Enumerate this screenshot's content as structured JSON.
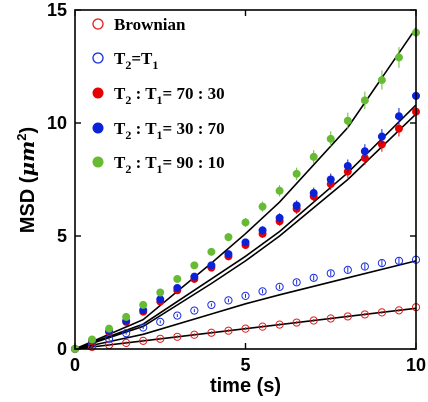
{
  "chart_data": {
    "type": "scatter",
    "xlabel": "time (s)",
    "ylabel_text": "MSD (",
    "ylabel_unit": "μm",
    "ylabel_sup": "2",
    "ylabel_close": ")",
    "xlim": [
      0,
      10
    ],
    "ylim": [
      0,
      15
    ],
    "xticks": [
      0,
      5,
      10
    ],
    "xtick_labels": [
      "0",
      "5",
      "10"
    ],
    "yticks": [
      0,
      5,
      10,
      15
    ],
    "ytick_labels": [
      "0",
      "5",
      "10",
      "15"
    ],
    "grid": false,
    "legend_position": "top-left",
    "series": [
      {
        "name": "Brownian",
        "color": "#e02020",
        "marker": "open-circle",
        "x": [
          0,
          0.5,
          1,
          1.5,
          2,
          2.5,
          3,
          3.5,
          4,
          4.5,
          5,
          5.5,
          6,
          6.5,
          7,
          7.5,
          8,
          8.5,
          9,
          9.5,
          10
        ],
        "y": [
          0,
          0.09,
          0.18,
          0.27,
          0.36,
          0.45,
          0.54,
          0.63,
          0.72,
          0.81,
          0.9,
          0.99,
          1.08,
          1.17,
          1.26,
          1.35,
          1.44,
          1.53,
          1.62,
          1.71,
          1.85
        ],
        "fit": [
          [
            0,
            0
          ],
          [
            10,
            1.8
          ]
        ]
      },
      {
        "name_main": "T",
        "name_sub1": "2",
        "name_mid": "=T",
        "name_sub2": "1",
        "color": "#1a2ee0",
        "marker": "open-circle",
        "x": [
          0,
          0.5,
          1,
          1.5,
          2,
          2.5,
          3,
          3.5,
          4,
          4.5,
          5,
          5.5,
          6,
          6.5,
          7,
          7.5,
          8,
          8.5,
          9,
          9.5,
          10
        ],
        "y": [
          0,
          0.22,
          0.45,
          0.7,
          0.95,
          1.2,
          1.48,
          1.7,
          1.95,
          2.15,
          2.35,
          2.55,
          2.75,
          2.95,
          3.15,
          3.35,
          3.5,
          3.65,
          3.8,
          3.9,
          3.95
        ],
        "fit": [
          [
            0,
            0
          ],
          [
            2,
            0.65
          ],
          [
            4,
            1.55
          ],
          [
            5,
            2.0
          ],
          [
            6,
            2.4
          ],
          [
            8,
            3.15
          ],
          [
            10,
            3.9
          ]
        ]
      },
      {
        "name_main": "T",
        "name_sub1": "2",
        "name_mid": " : T",
        "name_sub2": "1",
        "name_ratio": "= 70 : 30",
        "color": "#e60000",
        "marker": "filled-circle",
        "x": [
          0,
          0.5,
          1,
          1.5,
          2,
          2.5,
          3,
          3.5,
          4,
          4.5,
          5,
          5.5,
          6,
          6.5,
          7,
          7.5,
          8,
          8.5,
          9,
          9.5,
          10
        ],
        "y": [
          0,
          0.35,
          0.75,
          1.2,
          1.65,
          2.1,
          2.6,
          3.1,
          3.6,
          4.1,
          4.6,
          5.1,
          5.65,
          6.2,
          6.75,
          7.3,
          7.85,
          8.45,
          9.05,
          9.75,
          10.5
        ],
        "fit": [
          [
            0,
            0
          ],
          [
            2,
            1.0
          ],
          [
            4,
            2.9
          ],
          [
            5,
            3.9
          ],
          [
            6,
            5.0
          ],
          [
            8,
            7.5
          ],
          [
            10,
            10.4
          ]
        ]
      },
      {
        "name_main": "T",
        "name_sub1": "2",
        "name_mid": " : T",
        "name_sub2": "1",
        "name_ratio": "= 30 : 70",
        "color": "#0a22d8",
        "marker": "filled-circle",
        "x": [
          0,
          0.5,
          1,
          1.5,
          2,
          2.5,
          3,
          3.5,
          4,
          4.5,
          5,
          5.5,
          6,
          6.5,
          7,
          7.5,
          8,
          8.5,
          9,
          9.5,
          10
        ],
        "y": [
          0,
          0.38,
          0.8,
          1.25,
          1.72,
          2.2,
          2.7,
          3.2,
          3.7,
          4.2,
          4.72,
          5.25,
          5.8,
          6.35,
          6.9,
          7.5,
          8.1,
          8.75,
          9.4,
          10.3,
          11.2
        ],
        "fit": [
          [
            0,
            0
          ],
          [
            2,
            1.1
          ],
          [
            4,
            3.1
          ],
          [
            5,
            4.1
          ],
          [
            6,
            5.2
          ],
          [
            8,
            7.8
          ],
          [
            10,
            10.8
          ]
        ]
      },
      {
        "name_main": "T",
        "name_sub1": "2",
        "name_mid": " : T",
        "name_sub2": "1",
        "name_ratio": "= 90 : 10",
        "color": "#66bb33",
        "marker": "filled-circle",
        "x": [
          0,
          0.5,
          1,
          1.5,
          2,
          2.5,
          3,
          3.5,
          4,
          4.5,
          5,
          5.5,
          6,
          6.5,
          7,
          7.5,
          8,
          8.5,
          9,
          9.5,
          10
        ],
        "y": [
          0,
          0.42,
          0.9,
          1.42,
          1.95,
          2.5,
          3.1,
          3.7,
          4.3,
          4.95,
          5.6,
          6.3,
          7.0,
          7.75,
          8.5,
          9.3,
          10.1,
          11.0,
          11.9,
          12.9,
          14.0
        ],
        "fit": [
          [
            0,
            0
          ],
          [
            2,
            1.3
          ],
          [
            4,
            3.8
          ],
          [
            5,
            5.1
          ],
          [
            6,
            6.5
          ],
          [
            8,
            9.8
          ],
          [
            10,
            14.2
          ]
        ]
      }
    ]
  }
}
